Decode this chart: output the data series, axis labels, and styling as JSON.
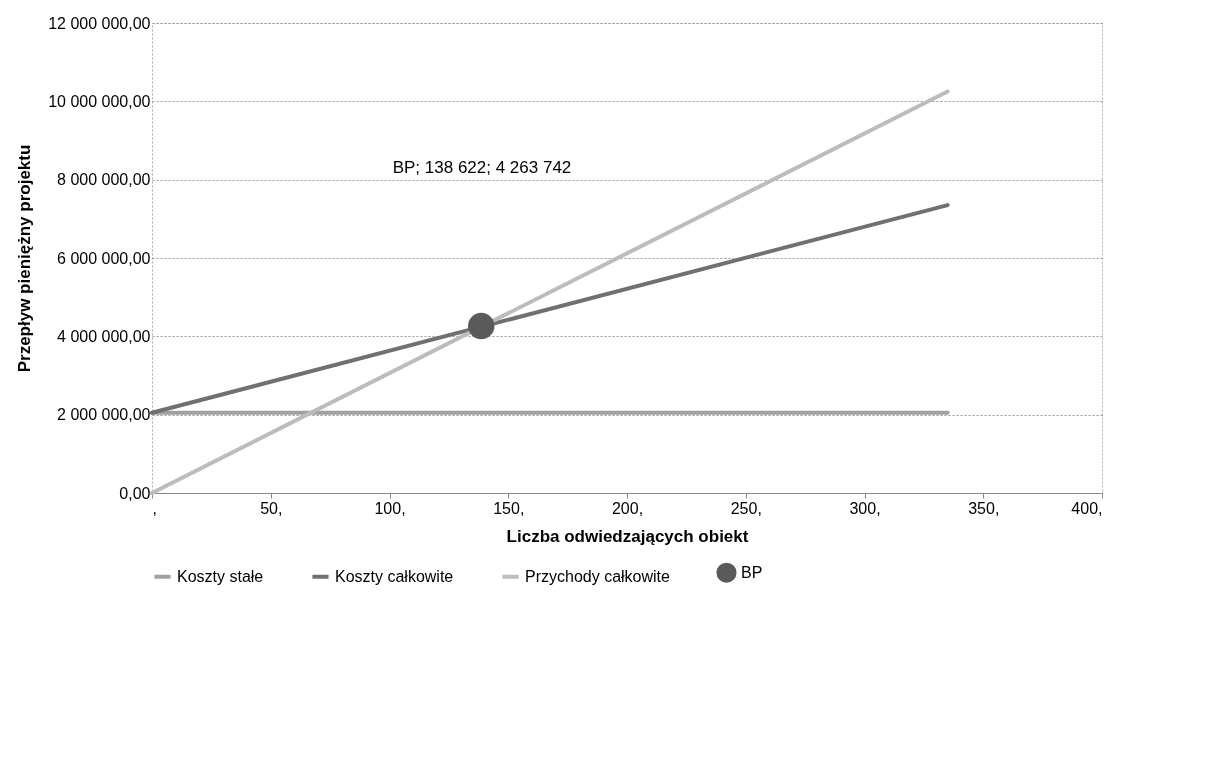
{
  "chart_data": {
    "type": "line",
    "xlabel": "Liczba odwiedzających obiekt",
    "ylabel": "Przepływ pieniężny projektu",
    "xlim": [
      0,
      400
    ],
    "xticks": [
      {
        "value": 0,
        "label": ","
      },
      {
        "value": 50,
        "label": "50,"
      },
      {
        "value": 100,
        "label": "100,"
      },
      {
        "value": 150,
        "label": "150,"
      },
      {
        "value": 200,
        "label": "200,"
      },
      {
        "value": 250,
        "label": "250,"
      },
      {
        "value": 300,
        "label": "300,"
      },
      {
        "value": 350,
        "label": "350,"
      },
      {
        "value": 400,
        "label": "400,"
      }
    ],
    "ylim": [
      0,
      12000000
    ],
    "yticks": [
      {
        "value": 0,
        "label": "0,00"
      },
      {
        "value": 2000000,
        "label": "2 000 000,00"
      },
      {
        "value": 4000000,
        "label": "4 000 000,00"
      },
      {
        "value": 6000000,
        "label": "6 000 000,00"
      },
      {
        "value": 8000000,
        "label": "8 000 000,00"
      },
      {
        "value": 10000000,
        "label": "10 000 000,00"
      },
      {
        "value": 12000000,
        "label": "12 000 000,00"
      }
    ],
    "grid": "y",
    "legend": "bottom",
    "series": [
      {
        "name": "Koszty stałe",
        "color": "#a0a0a0",
        "x": [
          0,
          335
        ],
        "values": [
          2050000,
          2050000
        ]
      },
      {
        "name": "Koszty całkowite",
        "color": "#707070",
        "x": [
          0,
          335
        ],
        "values": [
          2050000,
          7350000
        ]
      },
      {
        "name": "Przychody całkowite",
        "color": "#bcbcbc",
        "x": [
          0,
          335
        ],
        "values": [
          0,
          10250000
        ]
      },
      {
        "name": "BP",
        "type": "scatter",
        "marker": "circle",
        "color": "#5a5a5a",
        "x": [
          138.622
        ],
        "values": [
          4263742
        ]
      }
    ],
    "annotations": [
      "BP; 138 622; 4 263 742"
    ]
  }
}
